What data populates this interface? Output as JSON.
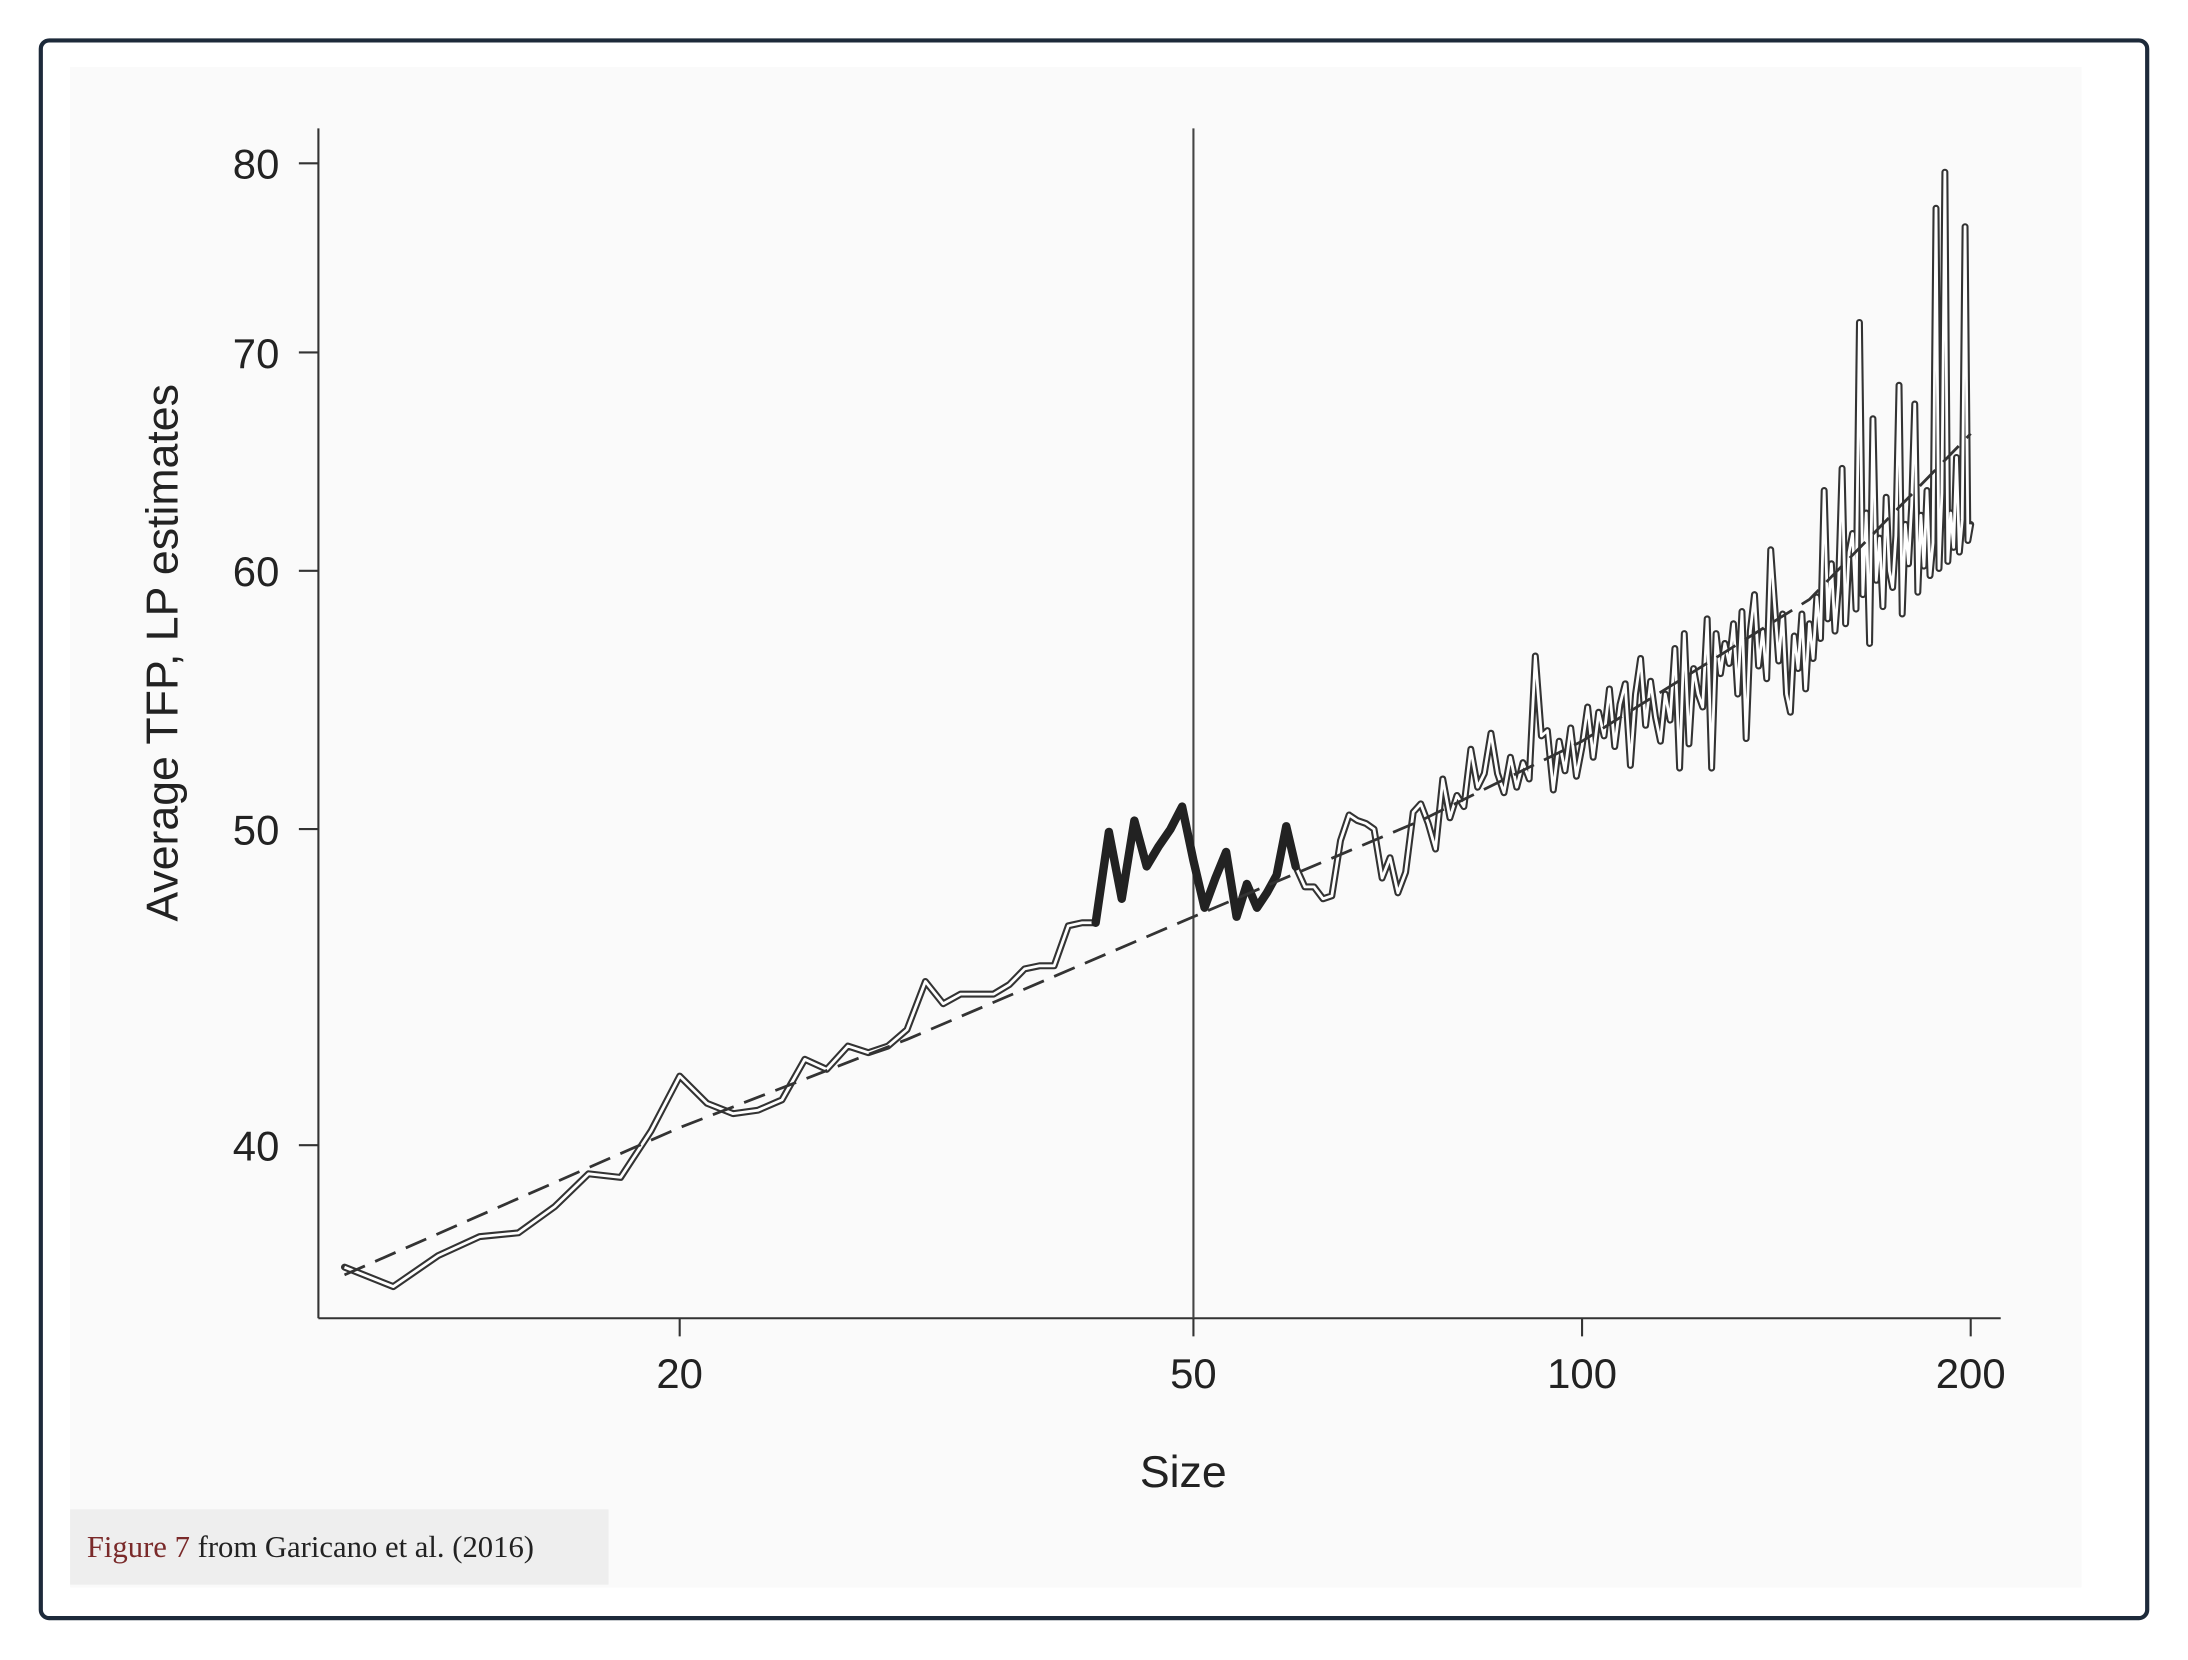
{
  "chart_data": {
    "type": "line",
    "x_label": "Size",
    "y_label": "Average TFP, LP estimates",
    "xlog": true,
    "ylog": true,
    "xlim": [
      10.5,
      211
    ],
    "ylim": [
      35.4,
      82
    ],
    "xticks": [
      20,
      50,
      100,
      200
    ],
    "yticks": [
      40,
      50,
      60,
      70,
      80
    ],
    "vline": 50,
    "series": [
      {
        "color": "#333333",
        "style": "double",
        "x": [
          11,
          12,
          13,
          14,
          15,
          16,
          17,
          18,
          19,
          20,
          21,
          22,
          23,
          24,
          25,
          26,
          27,
          28,
          29,
          30,
          31,
          32,
          33,
          34,
          35,
          36,
          37,
          38,
          39,
          40,
          41,
          42,
          43,
          44,
          45,
          46,
          47,
          48,
          49,
          50,
          51,
          52,
          53,
          54,
          55,
          56,
          57,
          58,
          59,
          60,
          61,
          62,
          63,
          64,
          65,
          66,
          67,
          68,
          69,
          70,
          71,
          72,
          73,
          74,
          75,
          76,
          77,
          78,
          79,
          80,
          81,
          82,
          83,
          84,
          85,
          86,
          87,
          88,
          89,
          90,
          91,
          92,
          93,
          94,
          95,
          96,
          97,
          98,
          99,
          100,
          101,
          102,
          103,
          104,
          105,
          106,
          107,
          108,
          109,
          110,
          111,
          112,
          113,
          114,
          115,
          116,
          117,
          118,
          119,
          120,
          121,
          122,
          123,
          124,
          125,
          126,
          127,
          128,
          129,
          130,
          131,
          132,
          133,
          134,
          135,
          136,
          137,
          138,
          139,
          140,
          141,
          142,
          143,
          144,
          145,
          146,
          147,
          148,
          149,
          150,
          151,
          152,
          153,
          154,
          155,
          156,
          157,
          158,
          159,
          160,
          161,
          162,
          163,
          164,
          165,
          166,
          167,
          168,
          169,
          170,
          171,
          172,
          173,
          174,
          175,
          176,
          177,
          178,
          179,
          180,
          181,
          182,
          183,
          184,
          185,
          186,
          187,
          188,
          189,
          190,
          191,
          192,
          193,
          194,
          195,
          196,
          197,
          198,
          199,
          200
        ],
        "values": [
          36.7,
          36.2,
          37.0,
          37.5,
          37.6,
          38.3,
          39.2,
          39.1,
          40.4,
          42.0,
          41.2,
          40.9,
          41.0,
          41.3,
          42.5,
          42.2,
          42.9,
          42.7,
          42.9,
          43.4,
          44.9,
          44.2,
          44.5,
          44.5,
          44.5,
          44.8,
          45.3,
          45.4,
          45.4,
          46.7,
          46.8,
          46.8,
          null,
          null,
          null,
          null,
          null,
          null,
          null,
          null,
          null,
          null,
          null,
          null,
          null,
          null,
          null,
          null,
          null,
          48.7,
          48.0,
          48.0,
          47.6,
          47.7,
          49.6,
          50.5,
          50.3,
          50.2,
          50.0,
          48.3,
          49.0,
          47.8,
          48.5,
          50.6,
          50.9,
          50.2,
          49.3,
          51.8,
          50.4,
          51.2,
          50.8,
          52.9,
          51.5,
          52.0,
          53.5,
          52.0,
          51.3,
          52.6,
          51.5,
          52.4,
          51.8,
          56.5,
          53.4,
          53.6,
          51.4,
          53.2,
          52.1,
          53.7,
          51.9,
          53.0,
          54.5,
          52.6,
          54.3,
          53.4,
          55.2,
          53.0,
          54.6,
          55.4,
          52.3,
          55.0,
          56.4,
          53.8,
          55.5,
          54.1,
          53.2,
          55.0,
          54.0,
          56.8,
          52.2,
          57.4,
          53.1,
          56.0,
          55.0,
          54.5,
          58.0,
          52.2,
          57.4,
          55.8,
          57.0,
          56.2,
          57.8,
          55.0,
          58.3,
          53.3,
          57.5,
          59.0,
          56.1,
          57.5,
          55.6,
          60.9,
          58.5,
          56.3,
          58.2,
          55.0,
          54.3,
          57.3,
          56.0,
          58.2,
          55.2,
          57.8,
          56.4,
          58.9,
          57.2,
          63.5,
          58.0,
          60.3,
          57.5,
          59.4,
          64.5,
          57.8,
          60.8,
          61.6,
          58.4,
          71.5,
          59.0,
          62.5,
          57.0,
          66.8,
          59.6,
          61.4,
          58.5,
          63.2,
          60.0,
          59.3,
          61.5,
          68.4,
          58.2,
          62.0,
          60.3,
          62.8,
          67.5,
          59.1,
          62.4,
          60.2,
          63.5,
          59.8,
          61.2,
          77.5,
          60.1,
          63.4,
          79.5,
          60.4,
          62.5,
          61.0,
          65.0,
          60.8,
          62.2,
          76.5,
          61.3,
          62.0
        ]
      },
      {
        "color": "#222222",
        "style": "bold",
        "x": [
          42,
          43,
          44,
          45,
          46,
          47,
          48,
          49,
          50,
          51,
          52,
          53,
          54,
          55,
          56,
          57,
          58,
          59,
          60
        ],
        "values": [
          46.8,
          49.9,
          47.6,
          50.3,
          48.7,
          49.4,
          50.0,
          50.8,
          48.9,
          47.3,
          48.3,
          49.2,
          47.0,
          48.1,
          47.3,
          47.8,
          48.4,
          50.1,
          48.7
        ]
      },
      {
        "color": "#333333",
        "style": "dashed",
        "x": [
          11,
          20,
          30,
          50,
          75,
          100,
          150,
          200
        ],
        "values": [
          36.5,
          40.5,
          43.1,
          47.0,
          50.3,
          53.2,
          58.8,
          66.1
        ]
      }
    ]
  },
  "caption": {
    "link": "Figure 7",
    "text": "from Garicano et al. (2016)"
  }
}
